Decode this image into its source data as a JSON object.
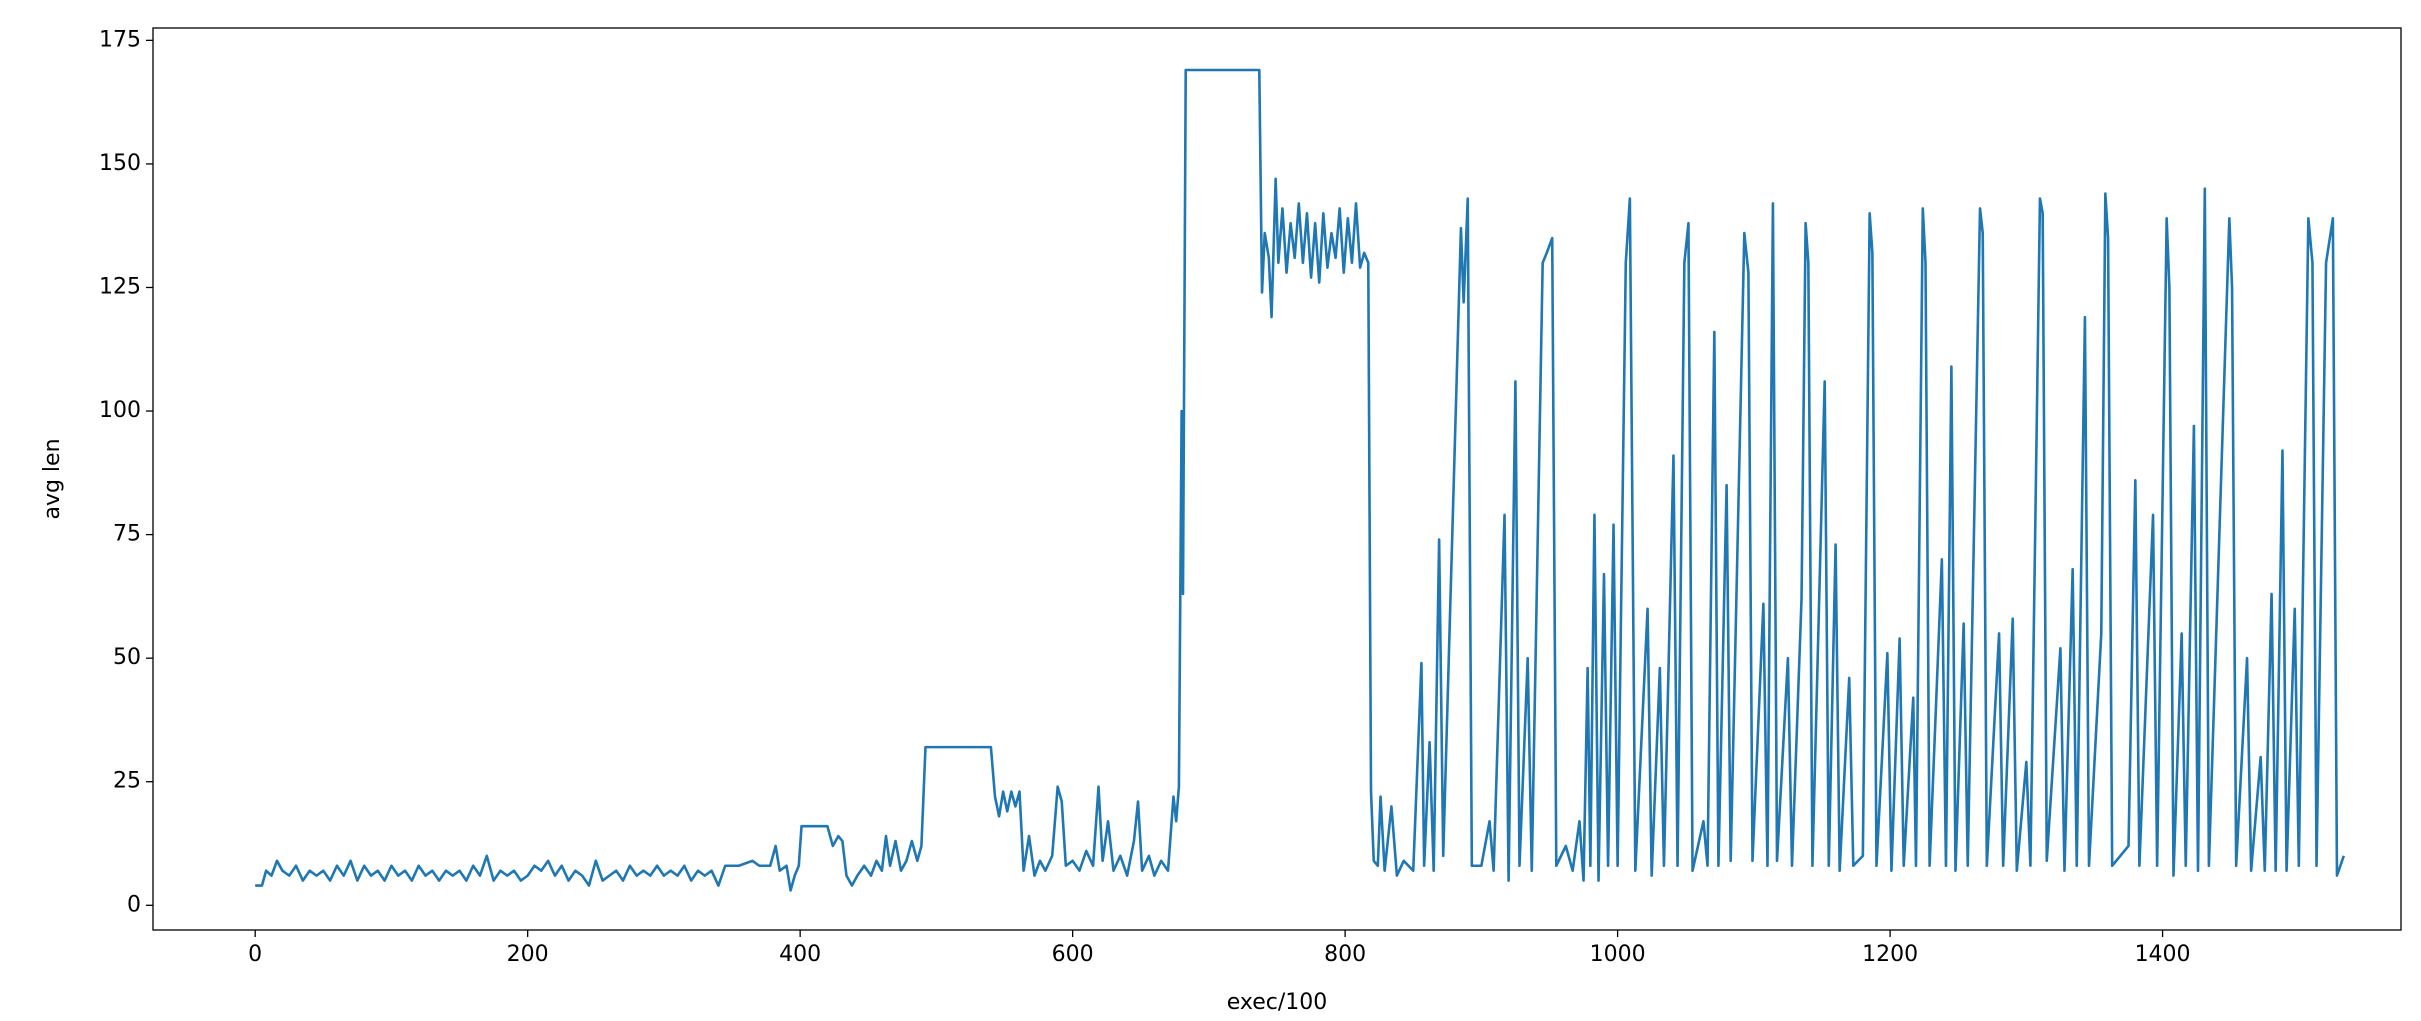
{
  "chart_data": {
    "type": "line",
    "x_label": "exec/100",
    "y_label": "avg len",
    "color": "#1f77b4",
    "xlim": [
      -75,
      1575
    ],
    "xticks": [
      0,
      200,
      400,
      600,
      800,
      1000,
      1200,
      1400
    ],
    "ylim": [
      -5,
      177.5
    ],
    "yticks": [
      0,
      25,
      50,
      75,
      100,
      125,
      150,
      175
    ],
    "x": [
      0,
      5,
      8,
      12,
      16,
      20,
      25,
      30,
      35,
      40,
      45,
      50,
      55,
      60,
      65,
      70,
      75,
      80,
      85,
      90,
      95,
      100,
      105,
      110,
      115,
      120,
      125,
      130,
      135,
      140,
      145,
      150,
      155,
      160,
      165,
      170,
      175,
      180,
      185,
      190,
      195,
      200,
      205,
      210,
      215,
      220,
      225,
      230,
      235,
      240,
      245,
      250,
      255,
      260,
      265,
      270,
      275,
      280,
      285,
      290,
      295,
      300,
      305,
      310,
      315,
      320,
      325,
      330,
      335,
      340,
      345,
      355,
      365,
      370,
      378,
      382,
      385,
      390,
      393,
      396,
      399,
      401,
      420,
      424,
      428,
      431,
      434,
      438,
      442,
      447,
      452,
      456,
      460,
      463,
      466,
      470,
      474,
      478,
      482,
      486,
      489,
      492,
      540,
      543,
      546,
      549,
      552,
      555,
      558,
      561,
      564,
      568,
      572,
      576,
      580,
      585,
      589,
      592,
      595,
      600,
      605,
      610,
      615,
      619,
      622,
      626,
      630,
      635,
      640,
      645,
      648,
      651,
      656,
      660,
      665,
      670,
      674,
      676,
      678,
      680,
      681,
      683,
      737,
      739,
      741,
      744,
      746,
      749,
      751,
      754,
      757,
      760,
      763,
      766,
      769,
      772,
      775,
      778,
      781,
      784,
      787,
      790,
      793,
      796,
      799,
      802,
      805,
      808,
      811,
      814,
      817,
      819,
      821,
      824,
      826,
      829,
      834,
      838,
      843,
      850,
      856,
      858,
      862,
      865,
      869,
      872,
      885,
      887,
      890,
      893,
      900,
      906,
      909,
      917,
      920,
      925,
      928,
      934,
      937,
      945,
      948,
      952,
      955,
      962,
      967,
      972,
      975,
      978,
      980,
      983,
      986,
      990,
      993,
      997,
      1000,
      1006,
      1009,
      1013,
      1022,
      1025,
      1031,
      1034,
      1041,
      1044,
      1049,
      1052,
      1055,
      1063,
      1066,
      1071,
      1074,
      1080,
      1083,
      1093,
      1096,
      1099,
      1107,
      1110,
      1114,
      1117,
      1125,
      1128,
      1135,
      1138,
      1140,
      1143,
      1152,
      1155,
      1160,
      1163,
      1170,
      1173,
      1180,
      1185,
      1187,
      1190,
      1198,
      1201,
      1207,
      1210,
      1217,
      1219,
      1224,
      1226,
      1229,
      1238,
      1241,
      1245,
      1248,
      1254,
      1257,
      1266,
      1268,
      1271,
      1280,
      1283,
      1290,
      1293,
      1300,
      1303,
      1310,
      1312,
      1315,
      1325,
      1328,
      1334,
      1337,
      1343,
      1346,
      1355,
      1358,
      1360,
      1363,
      1375,
      1380,
      1383,
      1393,
      1396,
      1403,
      1405,
      1408,
      1414,
      1417,
      1423,
      1426,
      1431,
      1434,
      1449,
      1451,
      1454,
      1462,
      1465,
      1472,
      1475,
      1480,
      1483,
      1488,
      1491,
      1497,
      1500,
      1507,
      1510,
      1513,
      1520,
      1525,
      1528,
      1533
    ],
    "values": [
      4,
      4,
      7,
      6,
      9,
      7,
      6,
      8,
      5,
      7,
      6,
      7,
      5,
      8,
      6,
      9,
      5,
      8,
      6,
      7,
      5,
      8,
      6,
      7,
      5,
      8,
      6,
      7,
      5,
      7,
      6,
      7,
      5,
      8,
      6,
      10,
      5,
      7,
      6,
      7,
      5,
      6,
      8,
      7,
      9,
      6,
      8,
      5,
      7,
      6,
      4,
      9,
      5,
      6,
      7,
      5,
      8,
      6,
      7,
      6,
      8,
      6,
      7,
      6,
      8,
      5,
      7,
      6,
      7,
      4,
      8,
      8,
      9,
      8,
      8,
      12,
      7,
      8,
      3,
      6,
      8,
      16,
      16,
      12,
      14,
      13,
      6,
      4,
      6,
      8,
      6,
      9,
      7,
      14,
      8,
      13,
      7,
      9,
      13,
      9,
      12,
      32,
      32,
      22,
      18,
      23,
      19,
      23,
      20,
      23,
      7,
      14,
      6,
      9,
      7,
      10,
      24,
      21,
      8,
      9,
      7,
      11,
      8,
      24,
      9,
      17,
      7,
      10,
      6,
      13,
      21,
      7,
      10,
      6,
      9,
      7,
      22,
      17,
      24,
      100,
      63,
      169,
      169,
      124,
      136,
      131,
      119,
      147,
      130,
      141,
      128,
      138,
      131,
      142,
      130,
      140,
      127,
      138,
      126,
      140,
      129,
      136,
      131,
      141,
      128,
      139,
      130,
      142,
      129,
      132,
      130,
      23,
      9,
      8,
      22,
      7,
      20,
      6,
      9,
      7,
      49,
      8,
      33,
      7,
      74,
      10,
      137,
      122,
      143,
      8,
      8,
      17,
      7,
      79,
      5,
      106,
      8,
      50,
      7,
      130,
      132,
      135,
      8,
      12,
      7,
      17,
      5,
      48,
      8,
      79,
      5,
      67,
      8,
      77,
      8,
      130,
      143,
      7,
      60,
      6,
      48,
      8,
      91,
      8,
      130,
      138,
      7,
      17,
      8,
      116,
      8,
      85,
      9,
      136,
      128,
      9,
      61,
      8,
      142,
      9,
      50,
      8,
      62,
      138,
      130,
      8,
      106,
      8,
      73,
      7,
      46,
      8,
      10,
      140,
      132,
      8,
      51,
      7,
      54,
      8,
      42,
      8,
      141,
      130,
      8,
      70,
      8,
      109,
      7,
      57,
      8,
      141,
      136,
      8,
      55,
      8,
      58,
      7,
      29,
      8,
      143,
      140,
      9,
      52,
      7,
      68,
      8,
      119,
      8,
      55,
      144,
      135,
      8,
      12,
      86,
      8,
      79,
      8,
      139,
      125,
      6,
      55,
      8,
      97,
      7,
      145,
      8,
      139,
      125,
      8,
      50,
      7,
      30,
      7,
      63,
      7,
      92,
      7,
      60,
      8,
      139,
      130,
      8,
      130,
      139,
      6,
      10
    ]
  }
}
